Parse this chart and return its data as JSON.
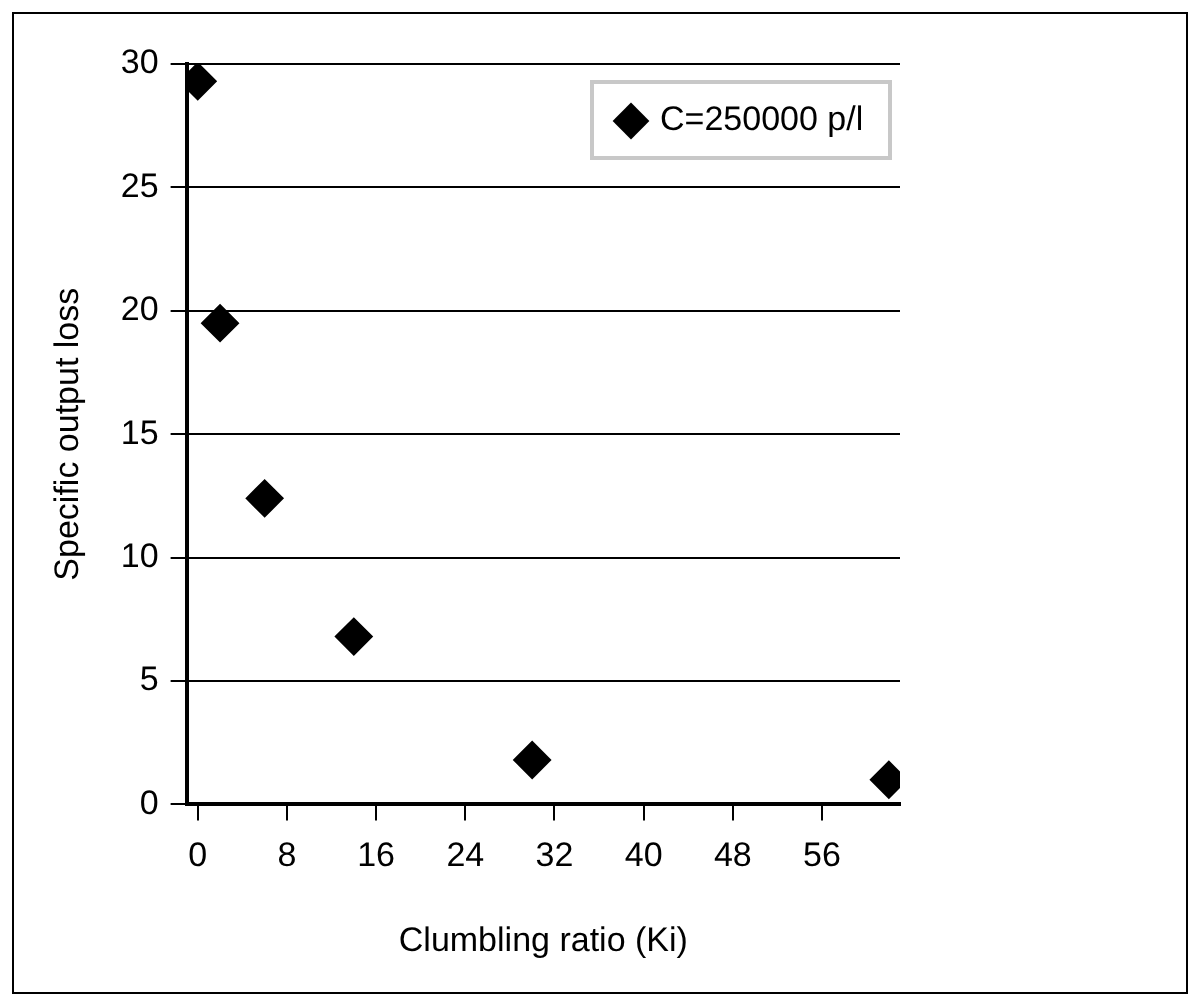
{
  "chart_data": {
    "type": "scatter",
    "xlabel": "Clumbling ratio (Ki)",
    "ylabel": "Specific output loss",
    "x": [
      0,
      2,
      6,
      14,
      30,
      62
    ],
    "series": [
      {
        "name": "C=250000 p/l",
        "color": "#000000",
        "values": [
          29.3,
          19.5,
          12.4,
          6.8,
          1.8,
          1.0
        ]
      }
    ],
    "xlim": [
      -1,
      63
    ],
    "xticks": [
      0,
      8,
      16,
      24,
      32,
      40,
      48,
      56
    ],
    "ylim": [
      0,
      30
    ],
    "yticks": [
      0,
      5,
      10,
      15,
      20,
      25,
      30
    ],
    "grid": "y",
    "legend": "top right",
    "marker": "diamond"
  }
}
